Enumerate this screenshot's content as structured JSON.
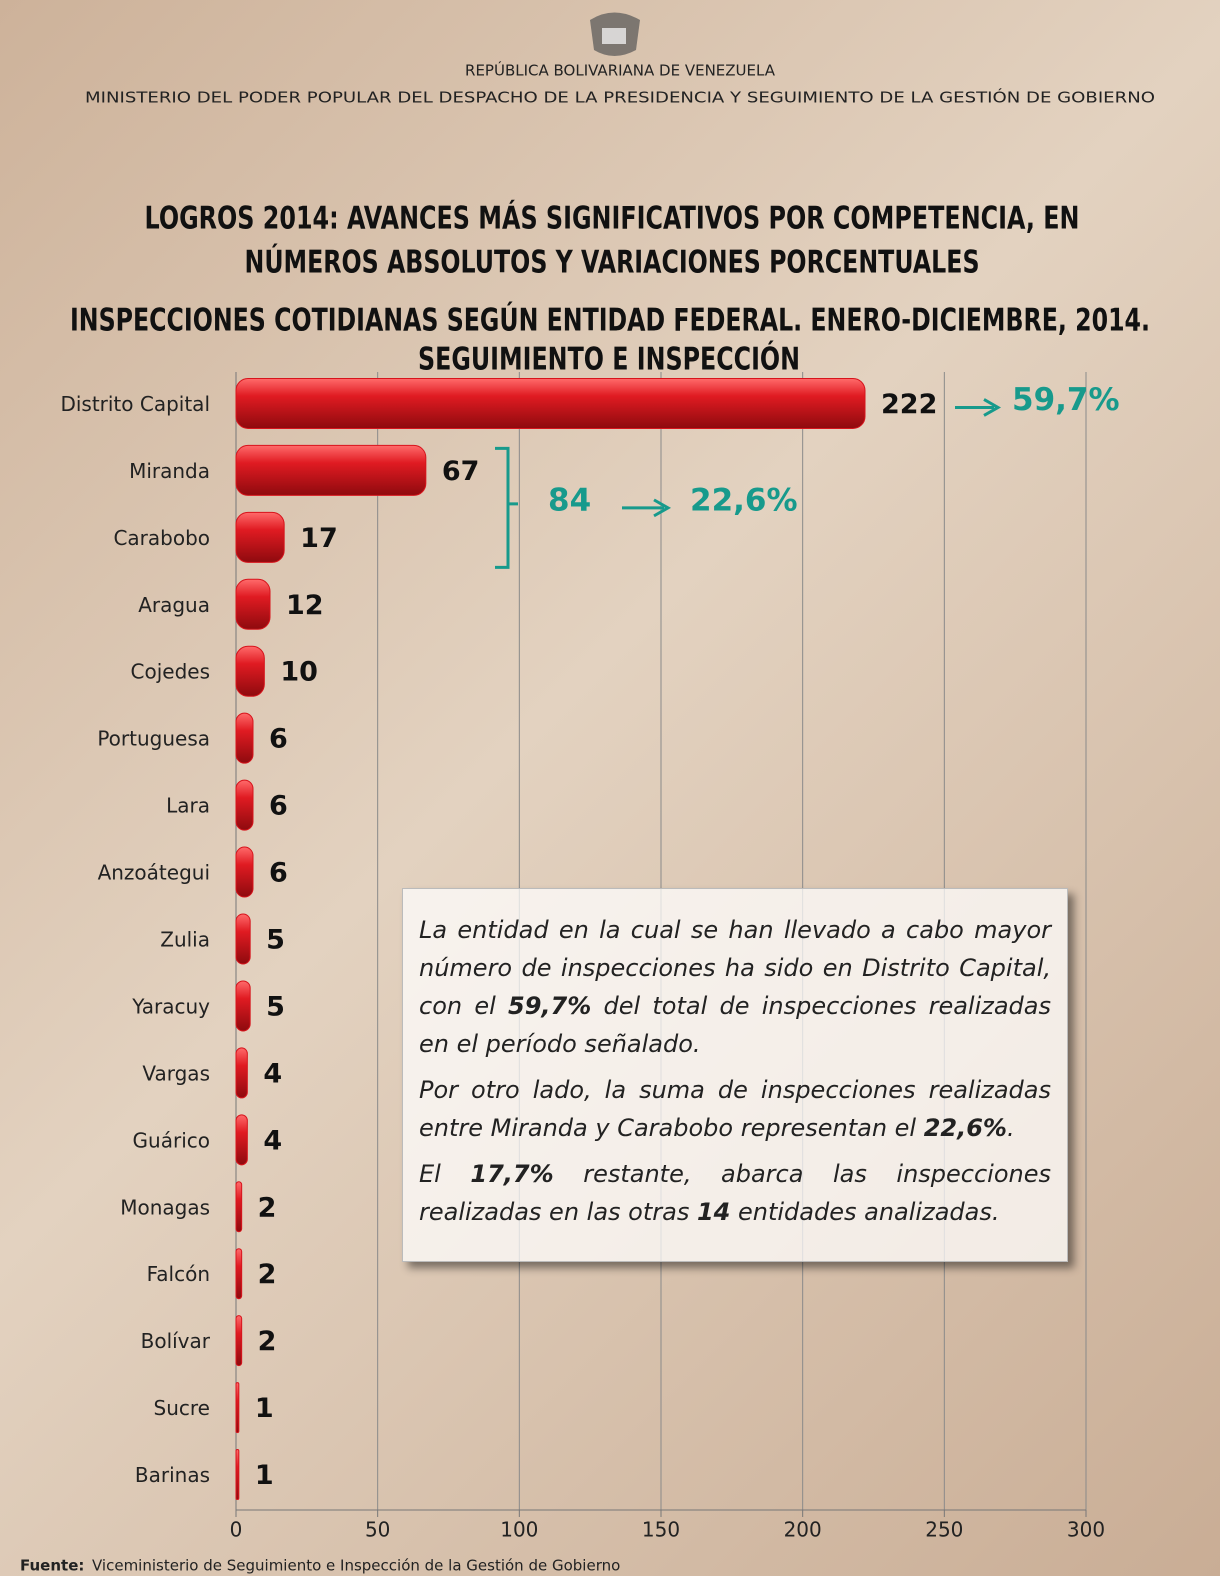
{
  "header": {
    "country": "REPÚBLICA BOLIVARIANA DE VENEZUELA",
    "ministry": "MINISTERIO  DEL PODER POPULAR DEL DESPACHO DE LA PRESIDENCIA  Y SEGUIMIENTO  DE LA GESTIÓN  DE GOBIERNO"
  },
  "chart_data": {
    "type": "bar",
    "orientation": "horizontal",
    "title": [
      "LOGROS 2014: AVANCES MÁS SIGNIFICATIVOS POR COMPETENCIA, EN",
      "NÚMEROS ABSOLUTOS Y VARIACIONES PORCENTUALES"
    ],
    "subtitle": [
      "INSPECCIONES COTIDIANAS SEGÚN ENTIDAD FEDERAL. ENERO-DICIEMBRE, 2014.",
      "SEGUIMIENTO E INSPECCIÓN"
    ],
    "categories": [
      "Distrito Capital",
      "Miranda",
      "Carabobo",
      "Aragua",
      "Cojedes",
      "Portuguesa",
      "Lara",
      "Anzoátegui",
      "Zulia",
      "Yaracuy",
      "Vargas",
      "Guárico",
      "Monagas",
      "Falcón",
      "Bolívar",
      "Sucre",
      "Barinas"
    ],
    "values": [
      222,
      67,
      17,
      12,
      10,
      6,
      6,
      6,
      5,
      5,
      4,
      4,
      2,
      2,
      2,
      1,
      1
    ],
    "color": "#d7141c",
    "xlim": [
      0,
      300
    ],
    "xticks": [
      0,
      50,
      100,
      150,
      200,
      250,
      300
    ],
    "grid": true,
    "annotations": {
      "top_share": "59,7%",
      "pair_sum": "84",
      "pair_share": "22,6%"
    },
    "annotation_color": "#179a8c"
  },
  "note": {
    "paragraphs": [
      [
        {
          "text": "La entidad en la cual se han llevado a cabo mayor número de inspecciones ha sido en Distrito Capital, con el "
        },
        {
          "text": "59,7%",
          "bold": true
        },
        {
          "text": " del total de inspecciones realizadas en el período señalado."
        }
      ],
      [
        {
          "text": "Por otro lado, la suma de inspecciones realizadas entre Miranda y Carabobo representan el "
        },
        {
          "text": "22,6%",
          "bold": true
        },
        {
          "text": "."
        }
      ],
      [
        {
          "text": "El "
        },
        {
          "text": "17,7%",
          "bold": true
        },
        {
          "text": " restante, abarca las inspecciones realizadas en las otras "
        },
        {
          "text": "14",
          "bold": true
        },
        {
          "text": " entidades analizadas."
        }
      ]
    ]
  },
  "footer": {
    "source_label": "Fuente:",
    "source": "Viceministerio de Seguimiento e Inspección de la Gestión de Gobierno"
  }
}
